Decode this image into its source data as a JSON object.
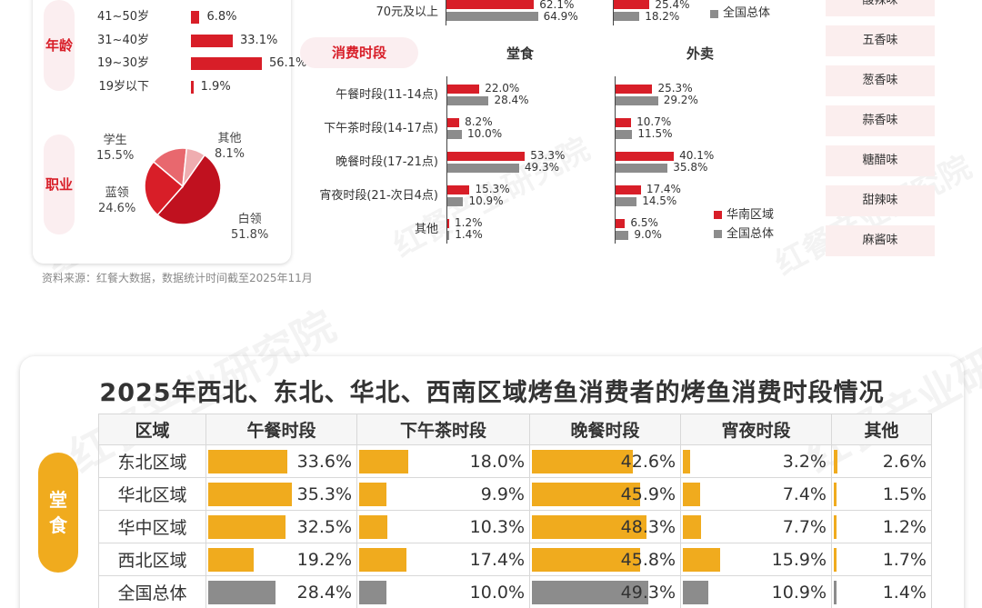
{
  "profile": {
    "age_pill": "年龄",
    "age_rows": [
      {
        "label": "41~50岁",
        "value": 6.8,
        "text": "6.8%"
      },
      {
        "label": "31~40岁",
        "value": 33.1,
        "text": "33.1%"
      },
      {
        "label": "19~30岁",
        "value": 56.1,
        "text": "56.1%"
      },
      {
        "label": "19岁以下",
        "value": 1.9,
        "text": "1.9%"
      }
    ],
    "job_pill": "职业",
    "occupation_pie": [
      {
        "name": "白领",
        "value": 51.8,
        "text": "51.8%",
        "color": "#c0111f"
      },
      {
        "name": "蓝领",
        "value": 24.6,
        "text": "24.6%",
        "color": "#d81e28"
      },
      {
        "name": "学生",
        "value": 15.5,
        "text": "15.5%",
        "color": "#e8686e"
      },
      {
        "name": "其他",
        "value": 8.1,
        "text": "8.1%",
        "color": "#efadb0"
      }
    ],
    "source": "资料来源：红餐大数据，数据统计时间截至2025年11月"
  },
  "price_partial": {
    "label": "70元及以上",
    "dine_text_red": "62.1%",
    "dine_text_grey": "64.9%",
    "take_text_red": "25.4%",
    "take_text_grey": "18.2%",
    "dine_red": 62.1,
    "dine_grey": 64.9,
    "take_red": 25.4,
    "take_grey": 18.2,
    "legend_grey": "全国总体"
  },
  "chart_data": {
    "type": "bar",
    "title": "消费时段",
    "categories": [
      "午餐时段(11-14点)",
      "下午茶时段(14-17点)",
      "晚餐时段(17-21点)",
      "宵夜时段(21-次日4点)",
      "其他"
    ],
    "panels": [
      {
        "name": "堂食",
        "series": [
          {
            "name": "华南区域",
            "values": [
              22.0,
              8.2,
              53.3,
              15.3,
              1.2
            ],
            "color": "#d81e28"
          },
          {
            "name": "全国总体",
            "values": [
              28.4,
              10.0,
              49.3,
              10.9,
              1.4
            ],
            "color": "#8c8c8c"
          }
        ]
      },
      {
        "name": "外卖",
        "series": [
          {
            "name": "华南区域",
            "values": [
              25.3,
              10.7,
              40.1,
              17.4,
              6.5
            ],
            "color": "#d81e28"
          },
          {
            "name": "全国总体",
            "values": [
              29.2,
              11.5,
              35.8,
              14.5,
              9.0
            ],
            "color": "#8c8c8c"
          }
        ]
      }
    ],
    "legend": [
      "华南区域",
      "全国总体"
    ],
    "unit": "%"
  },
  "flavors": [
    "酸辣味",
    "五香味",
    "葱香味",
    "蒜香味",
    "糖醋味",
    "甜辣味",
    "麻酱味"
  ],
  "watermark": {
    "brand": "红餐",
    "text": "产业研究院"
  },
  "region_table": {
    "title": "2025年西北、东北、华北、西南区域烤鱼消费者的烤鱼消费时段情况",
    "side_label": "堂食",
    "headers": [
      "区域",
      "午餐时段",
      "下午茶时段",
      "晚餐时段",
      "宵夜时段",
      "其他"
    ],
    "rows": [
      {
        "region": "东北区域",
        "values": [
          33.6,
          18.0,
          42.6,
          3.2,
          2.6
        ],
        "texts": [
          "33.6%",
          "18.0%",
          "42.6%",
          "3.2%",
          "2.6%"
        ],
        "color": "#f0ab1e"
      },
      {
        "region": "华北区域",
        "values": [
          35.3,
          9.9,
          45.9,
          7.4,
          1.5
        ],
        "texts": [
          "35.3%",
          "9.9%",
          "45.9%",
          "7.4%",
          "1.5%"
        ],
        "color": "#f0ab1e"
      },
      {
        "region": "华中区域",
        "values": [
          32.5,
          10.3,
          48.3,
          7.7,
          1.2
        ],
        "texts": [
          "32.5%",
          "10.3%",
          "48.3%",
          "7.7%",
          "1.2%"
        ],
        "color": "#f0ab1e"
      },
      {
        "region": "西北区域",
        "values": [
          19.2,
          17.4,
          45.8,
          15.9,
          1.7
        ],
        "texts": [
          "19.2%",
          "17.4%",
          "45.8%",
          "15.9%",
          "1.7%"
        ],
        "color": "#f0ab1e"
      },
      {
        "region": "全国总体",
        "values": [
          28.4,
          10.0,
          49.3,
          10.9,
          1.4
        ],
        "texts": [
          "28.4%",
          "10.0%",
          "49.3%",
          "10.9%",
          "1.4%"
        ],
        "color": "#8c8c8c"
      }
    ]
  }
}
